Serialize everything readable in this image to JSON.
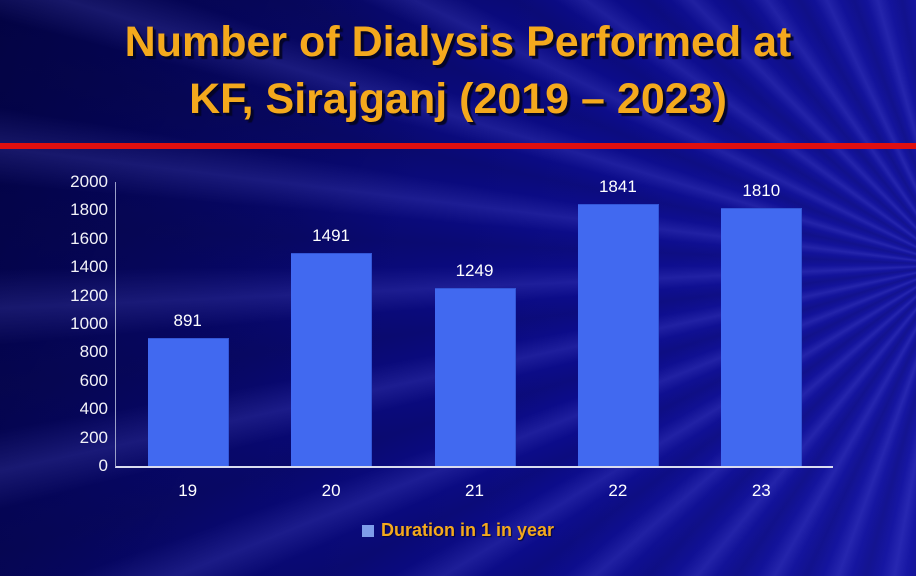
{
  "slide": {
    "title_line1": "Number of Dialysis Performed at",
    "title_line2": "KF, Sirajganj (2019 – 2023)"
  },
  "colors": {
    "background_base": "#0a0a87",
    "title_text": "#f4a91d",
    "divider_red": "#e00f0f",
    "bar_fill": "#4169f0",
    "bar_edge": "#3356d6",
    "axis_line": "#d9dcef",
    "tick_text": "#ffffff",
    "value_label_text": "#ffffff",
    "legend_text": "#f4a91d",
    "legend_marker": "#7e9cea"
  },
  "chart_data": {
    "type": "bar",
    "title": "Number of Dialysis Performed at KF, Sirajganj (2019 – 2023)",
    "categories": [
      "19",
      "20",
      "21",
      "22",
      "23"
    ],
    "values": [
      891,
      1491,
      1249,
      1841,
      1810
    ],
    "series_name": "Duration in 1 in year",
    "xlabel": "",
    "ylabel": "",
    "ylim": [
      0,
      2000
    ],
    "yticks": [
      0,
      200,
      400,
      600,
      800,
      1000,
      1200,
      1400,
      1600,
      1800,
      2000
    ],
    "grid": false,
    "legend_position": "bottom",
    "value_labels": true
  }
}
